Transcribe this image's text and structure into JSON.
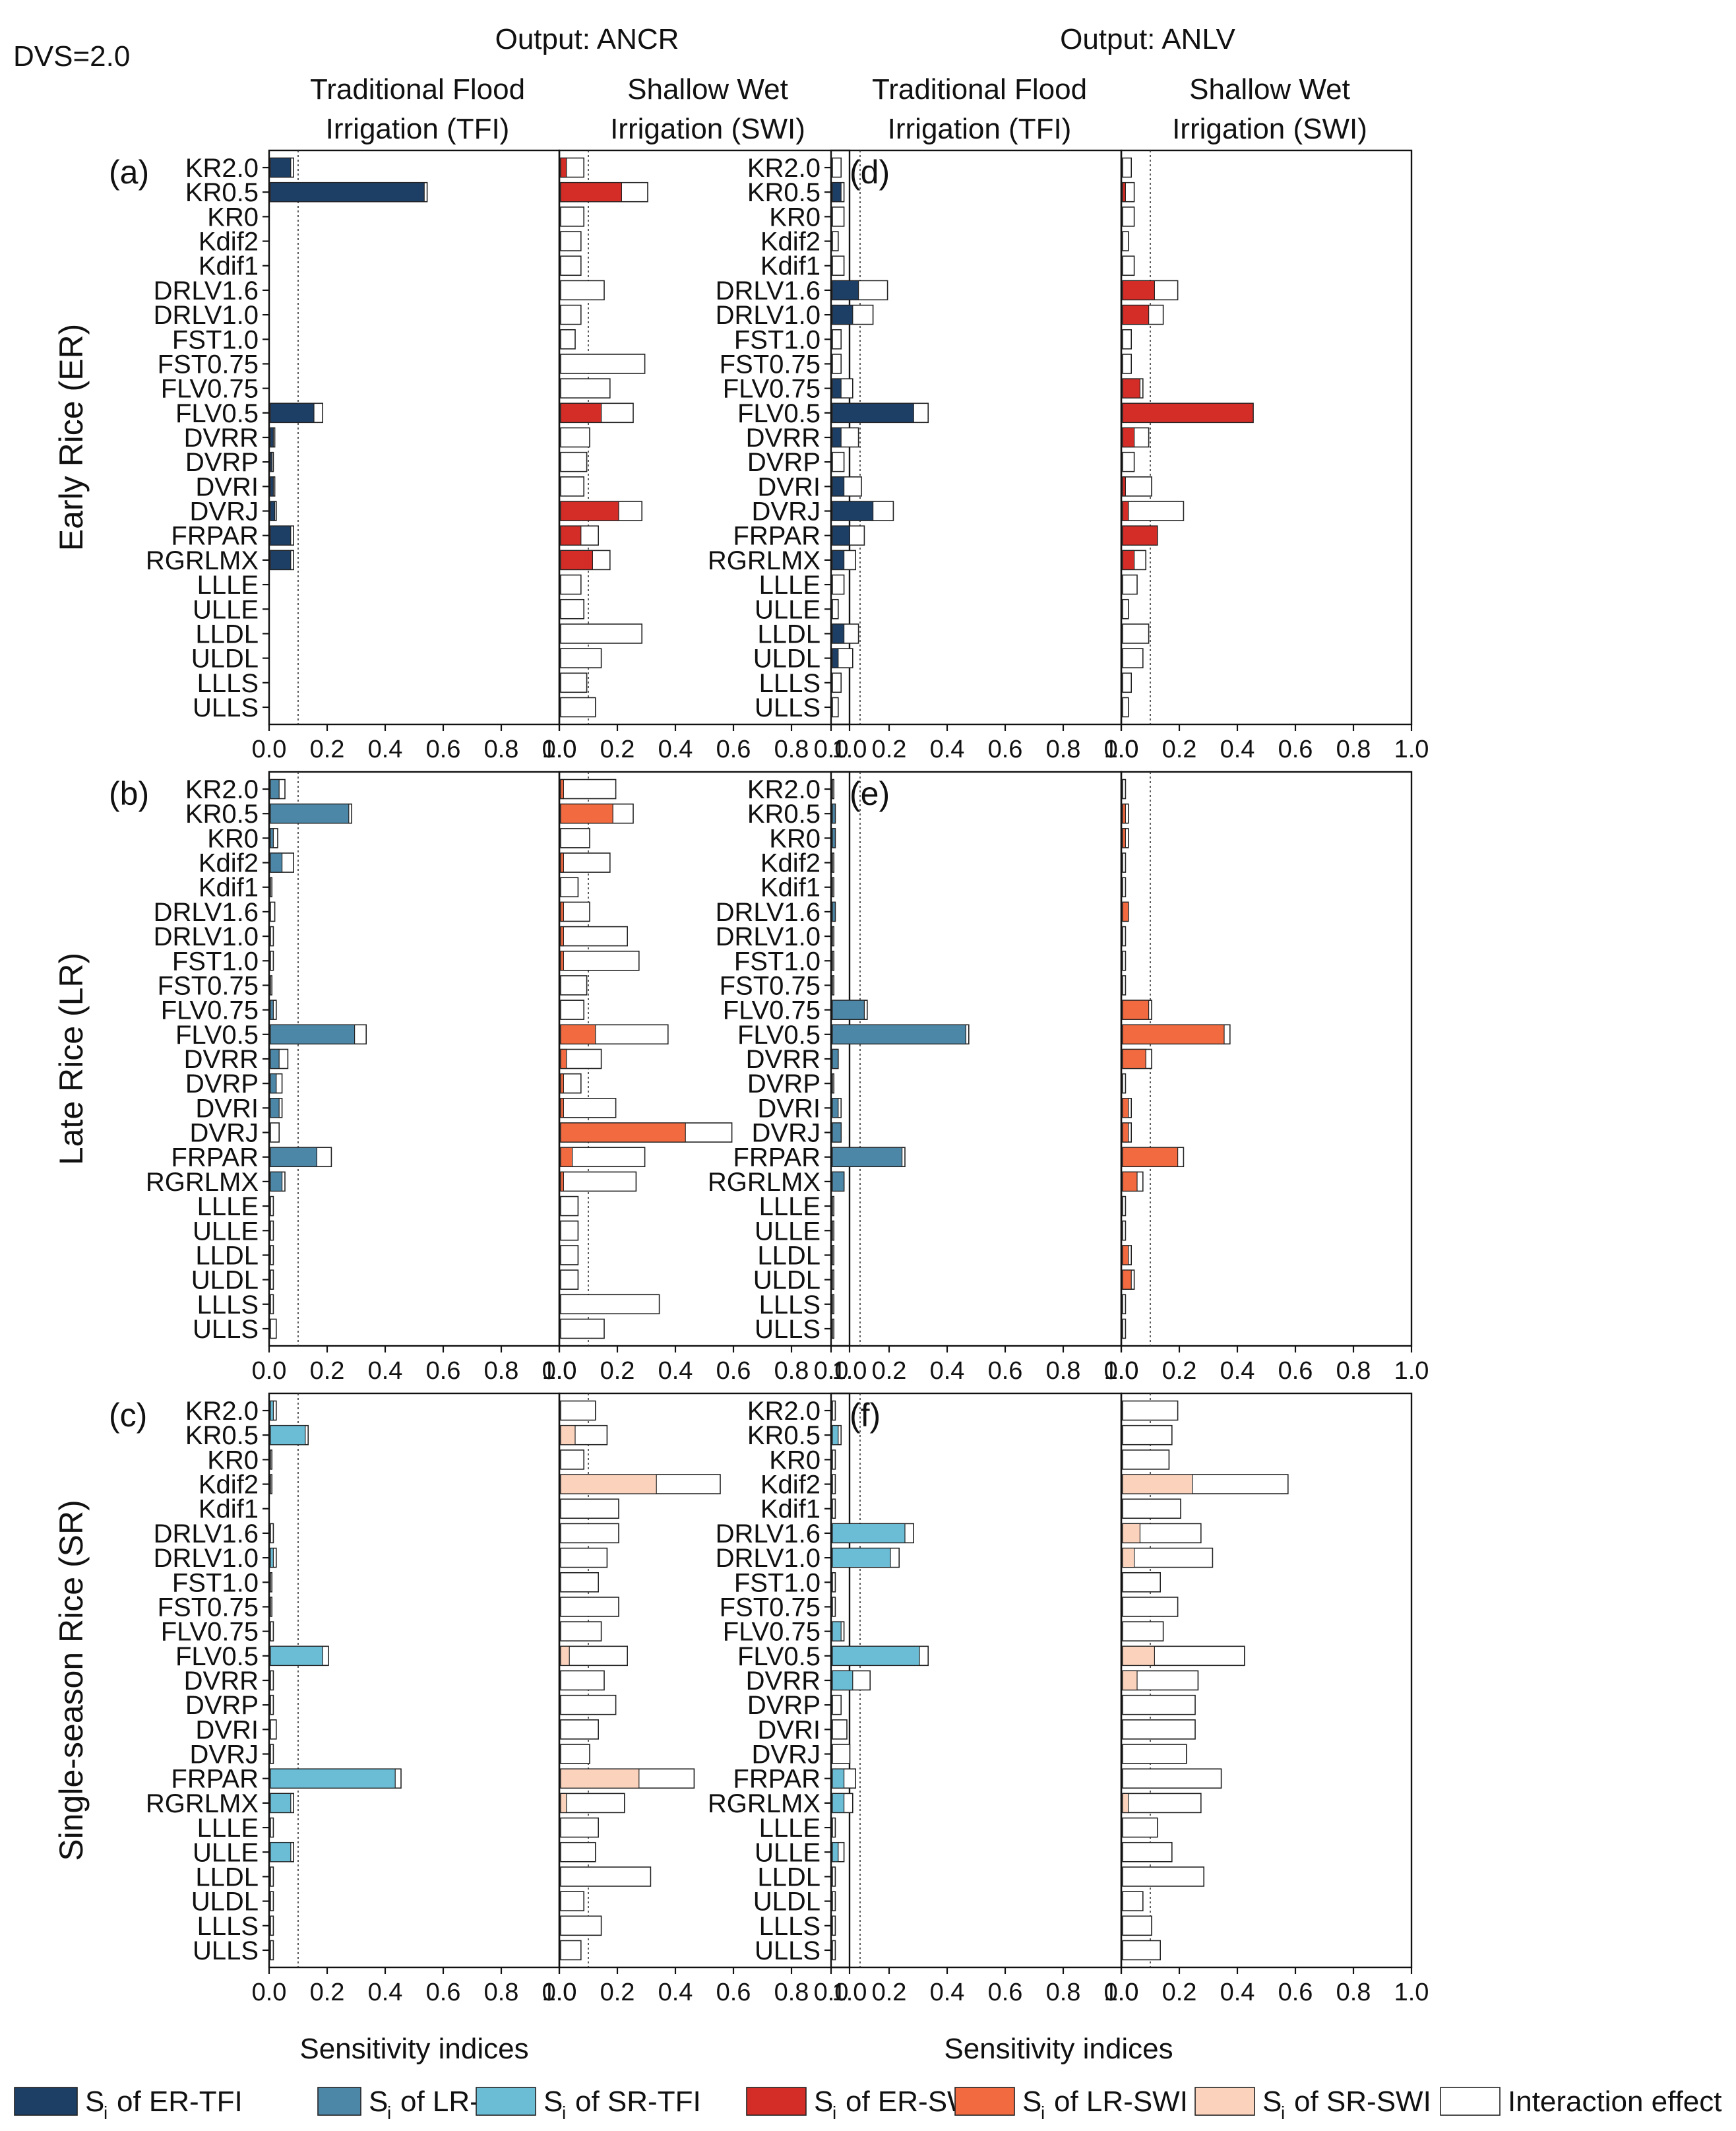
{
  "chart_data": {
    "type": "bar",
    "orientation": "horizontal",
    "figure_note": "DVS=2.0",
    "column_titles": [
      {
        "prefix": "Output:",
        "name": "ANCR"
      },
      {
        "prefix": "Output:",
        "name": "ANLV"
      }
    ],
    "panel_titles": {
      "tfi": [
        "Traditional Flood",
        "Irrigation (TFI)"
      ],
      "swi": [
        "Shallow Wet",
        "Irrigation (SWI)"
      ]
    },
    "row_labels": [
      "Early Rice (ER)",
      "Late Rice (LR)",
      "Single-season Rice (SR)"
    ],
    "xlabel": "Sensitivity indices",
    "xlim": [
      0,
      1.0
    ],
    "xticks": [
      "0.0",
      "0.2",
      "0.4",
      "0.6",
      "0.8",
      "1.0"
    ],
    "reference_line": 0.1,
    "parameters": [
      "KR2.0",
      "KR0.5",
      "KR0",
      "Kdif2",
      "Kdif1",
      "DRLV1.6",
      "DRLV1.0",
      "FST1.0",
      "FST0.75",
      "FLV0.75",
      "FLV0.5",
      "DVRR",
      "DVRP",
      "DVRI",
      "DVRJ",
      "FRPAR",
      "RGRLMX",
      "LLLE",
      "ULLE",
      "LLDL",
      "ULDL",
      "LLLS",
      "ULLS"
    ],
    "panels": [
      {
        "letter": "(a)",
        "row": "ER",
        "output": "ANCR",
        "tfi": {
          "si": [
            0.07,
            0.53,
            0,
            0,
            0,
            0,
            0,
            0,
            0,
            0,
            0.15,
            0.01,
            0.005,
            0.01,
            0.015,
            0.07,
            0.07,
            0,
            0,
            0,
            0,
            0,
            0
          ],
          "st": [
            0.08,
            0.54,
            0,
            0,
            0,
            0,
            0,
            0,
            0,
            0,
            0.18,
            0.015,
            0.01,
            0.015,
            0.02,
            0.08,
            0.08,
            0,
            0,
            0,
            0,
            0,
            0
          ]
        },
        "swi": {
          "si": [
            0.02,
            0.21,
            0,
            0,
            0,
            0,
            0,
            0,
            0,
            0,
            0.14,
            0,
            0,
            0,
            0.2,
            0.07,
            0.11,
            0,
            0,
            0,
            0,
            0,
            0
          ],
          "st": [
            0.08,
            0.3,
            0.08,
            0.07,
            0.07,
            0.15,
            0.07,
            0.05,
            0.29,
            0.17,
            0.25,
            0.1,
            0.09,
            0.08,
            0.28,
            0.13,
            0.17,
            0.07,
            0.08,
            0.28,
            0.14,
            0.09,
            0.12
          ]
        }
      },
      {
        "letter": "(b)",
        "row": "LR",
        "output": "ANCR",
        "tfi": {
          "si": [
            0.03,
            0.27,
            0.01,
            0.04,
            0,
            0,
            0,
            0,
            0,
            0.01,
            0.29,
            0.03,
            0.02,
            0.03,
            0,
            0.16,
            0.04,
            0,
            0,
            0,
            0,
            0,
            0
          ],
          "st": [
            0.05,
            0.28,
            0.025,
            0.08,
            0.005,
            0.015,
            0.01,
            0.01,
            0.005,
            0.02,
            0.33,
            0.06,
            0.04,
            0.04,
            0.03,
            0.21,
            0.05,
            0.01,
            0.01,
            0.01,
            0.01,
            0.01,
            0.02
          ]
        },
        "swi": {
          "si": [
            0.01,
            0.18,
            0,
            0.01,
            0,
            0.01,
            0.01,
            0.01,
            0,
            0,
            0.12,
            0.02,
            0.01,
            0.01,
            0.43,
            0.04,
            0.01,
            0,
            0,
            0,
            0,
            0,
            0
          ],
          "st": [
            0.19,
            0.25,
            0.1,
            0.17,
            0.06,
            0.1,
            0.23,
            0.27,
            0.09,
            0.08,
            0.37,
            0.14,
            0.07,
            0.19,
            0.59,
            0.29,
            0.26,
            0.06,
            0.06,
            0.06,
            0.06,
            0.34,
            0.15
          ]
        }
      },
      {
        "letter": "(c)",
        "row": "SR",
        "output": "ANCR",
        "tfi": {
          "si": [
            0.01,
            0.12,
            0,
            0,
            0,
            0,
            0.01,
            0,
            0,
            0,
            0.18,
            0,
            0,
            0,
            0,
            0.43,
            0.07,
            0,
            0.07,
            0,
            0,
            0,
            0
          ],
          "st": [
            0.02,
            0.13,
            0.005,
            0.005,
            0,
            0.01,
            0.02,
            0.005,
            0.005,
            0.01,
            0.2,
            0.01,
            0.01,
            0.02,
            0.01,
            0.45,
            0.08,
            0.01,
            0.08,
            0.01,
            0.01,
            0.01,
            0.01
          ]
        },
        "swi": {
          "si": [
            0,
            0.05,
            0,
            0.33,
            0,
            0,
            0,
            0,
            0,
            0,
            0.03,
            0,
            0,
            0,
            0,
            0.27,
            0.02,
            0,
            0,
            0,
            0,
            0,
            0
          ],
          "st": [
            0.12,
            0.16,
            0.08,
            0.55,
            0.2,
            0.2,
            0.16,
            0.13,
            0.2,
            0.14,
            0.23,
            0.15,
            0.19,
            0.13,
            0.1,
            0.46,
            0.22,
            0.13,
            0.12,
            0.31,
            0.08,
            0.14,
            0.07
          ]
        }
      },
      {
        "letter": "(d)",
        "row": "ER",
        "output": "ANLV",
        "tfi": {
          "si": [
            0,
            0.03,
            0,
            0,
            0,
            0.09,
            0.07,
            0,
            0,
            0.03,
            0.28,
            0.03,
            0,
            0.04,
            0.14,
            0.06,
            0.04,
            0,
            0,
            0.04,
            0.02,
            0,
            0
          ],
          "st": [
            0.03,
            0.04,
            0.04,
            0.02,
            0.04,
            0.19,
            0.14,
            0.03,
            0.03,
            0.07,
            0.33,
            0.09,
            0.04,
            0.1,
            0.21,
            0.11,
            0.08,
            0.04,
            0.02,
            0.09,
            0.07,
            0.03,
            0.02
          ]
        },
        "swi": {
          "si": [
            0,
            0.01,
            0,
            0,
            0,
            0.11,
            0.09,
            0,
            0,
            0.06,
            0.45,
            0.04,
            0,
            0.01,
            0.02,
            0.12,
            0.04,
            0,
            0,
            0,
            0,
            0,
            0
          ],
          "st": [
            0.03,
            0.04,
            0.04,
            0.02,
            0.04,
            0.19,
            0.14,
            0.03,
            0.03,
            0.07,
            0.45,
            0.09,
            0.04,
            0.1,
            0.21,
            0.12,
            0.08,
            0.05,
            0.02,
            0.09,
            0.07,
            0.03,
            0.02
          ]
        }
      },
      {
        "letter": "(e)",
        "row": "LR",
        "output": "ANLV",
        "tfi": {
          "si": [
            0,
            0.01,
            0.01,
            0,
            0,
            0.01,
            0,
            0,
            0,
            0.11,
            0.46,
            0.02,
            0,
            0.02,
            0.03,
            0.24,
            0.04,
            0,
            0,
            0,
            0,
            0,
            0
          ],
          "st": [
            0.005,
            0.01,
            0.01,
            0.005,
            0.005,
            0.01,
            0.005,
            0.005,
            0.005,
            0.12,
            0.47,
            0.02,
            0.005,
            0.03,
            0.03,
            0.25,
            0.04,
            0.005,
            0.005,
            0.005,
            0.005,
            0.005,
            0.005
          ]
        },
        "swi": {
          "si": [
            0,
            0.01,
            0.01,
            0,
            0,
            0.02,
            0,
            0,
            0,
            0.09,
            0.35,
            0.08,
            0,
            0.02,
            0.02,
            0.19,
            0.05,
            0,
            0,
            0.02,
            0.03,
            0,
            0
          ],
          "st": [
            0.01,
            0.02,
            0.02,
            0.01,
            0.01,
            0.02,
            0.01,
            0.01,
            0.01,
            0.1,
            0.37,
            0.1,
            0.01,
            0.03,
            0.03,
            0.21,
            0.07,
            0.01,
            0.01,
            0.03,
            0.04,
            0.01,
            0.01
          ]
        }
      },
      {
        "letter": "(f)",
        "row": "SR",
        "output": "ANLV",
        "tfi": {
          "si": [
            0,
            0.02,
            0,
            0,
            0,
            0.25,
            0.2,
            0,
            0,
            0.03,
            0.3,
            0.07,
            0,
            0,
            0,
            0.04,
            0.04,
            0,
            0.02,
            0,
            0,
            0,
            0
          ],
          "st": [
            0.01,
            0.03,
            0.01,
            0.01,
            0.01,
            0.28,
            0.23,
            0.01,
            0.01,
            0.04,
            0.33,
            0.13,
            0.03,
            0.05,
            0.06,
            0.08,
            0.07,
            0.01,
            0.04,
            0.01,
            0.01,
            0.01,
            0.01
          ]
        },
        "swi": {
          "si": [
            0,
            0,
            0,
            0.24,
            0,
            0.06,
            0.04,
            0,
            0,
            0,
            0.11,
            0.05,
            0,
            0,
            0,
            0,
            0.02,
            0,
            0,
            0,
            0,
            0,
            0
          ],
          "st": [
            0.19,
            0.17,
            0.16,
            0.57,
            0.2,
            0.27,
            0.31,
            0.13,
            0.19,
            0.14,
            0.42,
            0.26,
            0.25,
            0.25,
            0.22,
            0.34,
            0.27,
            0.12,
            0.17,
            0.28,
            0.07,
            0.1,
            0.13
          ]
        }
      }
    ],
    "legend": [
      {
        "text": "of ER-TFI",
        "color": "#1d3f66"
      },
      {
        "text": "of LR-TFI",
        "color": "#4d87a8"
      },
      {
        "text": "of SR-TFI",
        "color": "#6bbdd6"
      },
      {
        "text": "of ER-SWI",
        "color": "#d42d27"
      },
      {
        "text": "of LR-SWI",
        "color": "#f26a40"
      },
      {
        "text": "of SR-SWI",
        "color": "#fbd3bd"
      },
      {
        "text": "Interaction effect",
        "color": "#ffffff"
      }
    ],
    "legend_symbol": {
      "main": "S",
      "sub": "i"
    },
    "colors": {
      "ER": {
        "TFI": "#1d3f66",
        "SWI": "#d42d27"
      },
      "LR": {
        "TFI": "#4d87a8",
        "SWI": "#f26a40"
      },
      "SR": {
        "TFI": "#6bbdd6",
        "SWI": "#fbd3bd"
      }
    }
  }
}
